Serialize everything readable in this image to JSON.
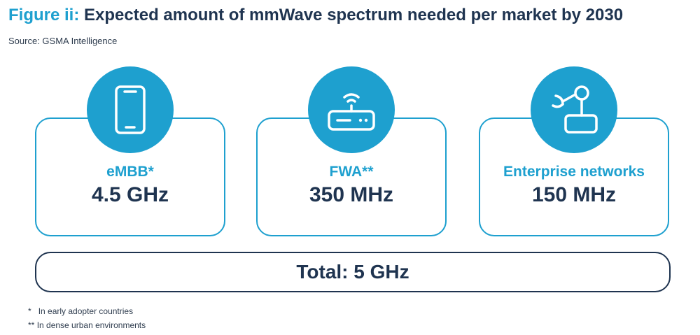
{
  "header": {
    "figure_label": "Figure ii:",
    "title": "Expected amount of mmWave spectrum needed per market by 2030",
    "source": "Source: GSMA Intelligence"
  },
  "colors": {
    "accent": "#1ea0cf",
    "navy": "#1f3450"
  },
  "cards": [
    {
      "label": "eMBB*",
      "value": "4.5 GHz",
      "icon": "smartphone-icon"
    },
    {
      "label": "FWA**",
      "value": "350 MHz",
      "icon": "wifi-router-icon"
    },
    {
      "label": "Enterprise networks",
      "value": "150 MHz",
      "icon": "robotic-arm-icon"
    }
  ],
  "total": "Total: 5 GHz",
  "footnotes": [
    {
      "marker": "*",
      "text": "In early adopter countries"
    },
    {
      "marker": "**",
      "text": "In dense urban environments"
    }
  ]
}
